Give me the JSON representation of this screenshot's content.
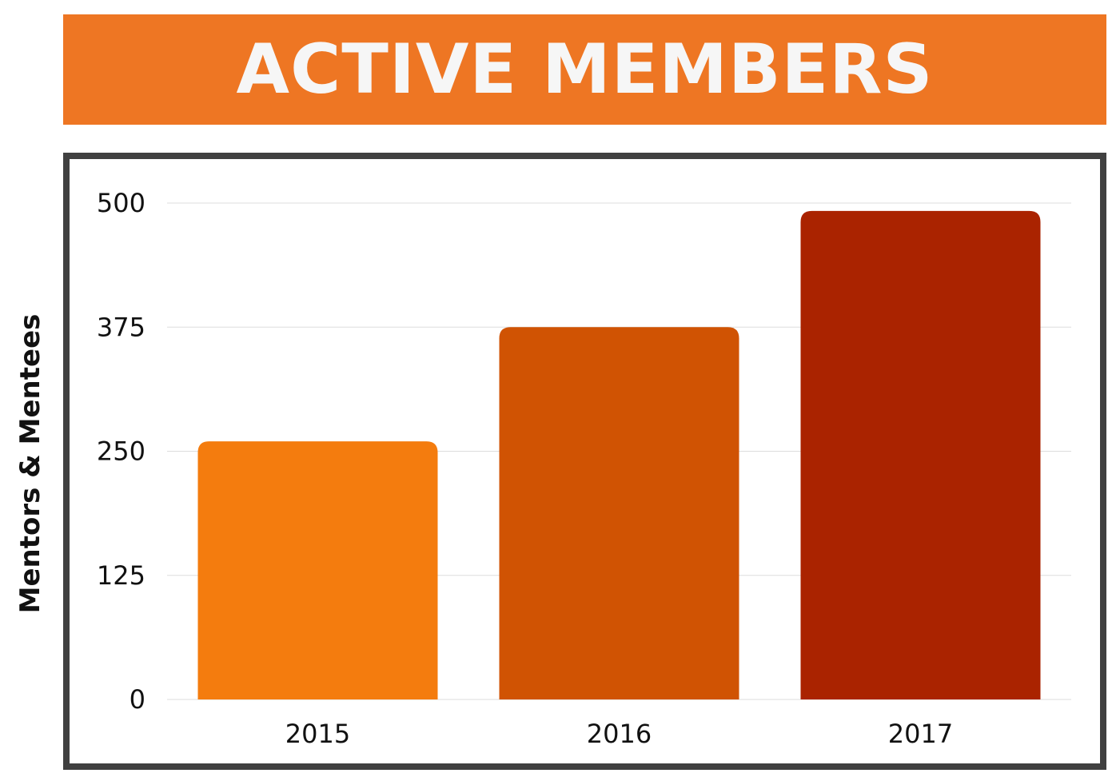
{
  "chart_data": {
    "type": "bar",
    "title": "ACTIVE MEMBERS",
    "xlabel": "",
    "ylabel": "Mentors & Mentees",
    "categories": [
      "2015",
      "2016",
      "2017"
    ],
    "values": [
      260,
      375,
      492
    ],
    "yticks": [
      "0",
      "125",
      "250",
      "375",
      "500"
    ],
    "ylim": [
      0,
      500
    ],
    "grid": true,
    "colors": {
      "banner": "#ee7623",
      "bars": [
        "#f47c0e",
        "#d05303",
        "#aa2300"
      ],
      "frame": "#404040",
      "gridline": "#dddddd"
    }
  }
}
